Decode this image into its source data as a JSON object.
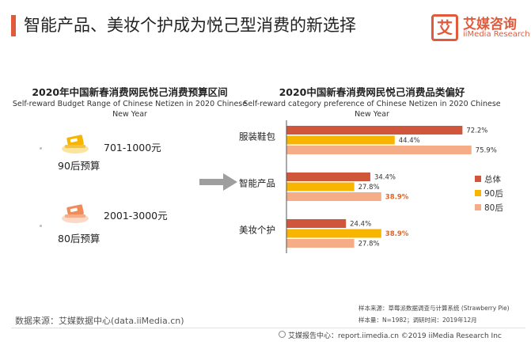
{
  "page": {
    "title": "智能产品、美妆个护成为悦己型消费的新选择"
  },
  "brand": {
    "mark": "艾",
    "name": "艾媒咨询",
    "sub": "iiMedia Research"
  },
  "budget_section": {
    "title": "2020年中国新春消费网民悦己消费预算区间",
    "subtitle": "Self-reward Budget Range of Chinese Netizen in 2020 Chinese New Year",
    "items": [
      {
        "amount": "701-1000元",
        "label": "90后预算",
        "icon": "money-icon"
      },
      {
        "amount": "2001-3000元",
        "label": "80后预算",
        "icon": "money-icon"
      }
    ]
  },
  "preference_section": {
    "title": "2020中国新春消费网民悦己消费品类偏好",
    "subtitle": "Self-reward category preference of Chinese Netizen in 2020 Chinese New Year"
  },
  "chart_data": {
    "type": "bar",
    "orientation": "horizontal",
    "categories": [
      "服装鞋包",
      "智能产品",
      "美妆个护"
    ],
    "series": [
      {
        "name": "总体",
        "values": [
          72.2,
          34.4,
          24.4
        ],
        "color": "#cf563b"
      },
      {
        "name": "90后",
        "values": [
          44.4,
          27.8,
          38.9
        ],
        "color": "#f7b500"
      },
      {
        "name": "80后",
        "values": [
          75.9,
          38.9,
          27.8
        ],
        "color": "#f5ad88"
      }
    ],
    "value_labels": [
      [
        "72.2%",
        "44.4%",
        "75.9%"
      ],
      [
        "34.4%",
        "27.8%",
        "38.9%"
      ],
      [
        "24.4%",
        "38.9%",
        "27.8%"
      ]
    ],
    "highlighted_labels": [
      [
        1,
        2
      ],
      [
        2,
        1
      ]
    ],
    "highlight_color": "#d9682e",
    "xlim": [
      0,
      100
    ],
    "legend_position": "right",
    "grid": false
  },
  "footnotes": {
    "data_source": "数据来源：艾媒数据中心(data.iiMedia.cn)",
    "sample_source": "样本来源：草莓派数据调查与计算系统 (Strawberry Pie)",
    "sample_info": "样本量：N=1982；调研时间：2019年12月",
    "footer": "艾媒报告中心：report.iimedia.cn  ©2019  iiMedia Research Inc"
  }
}
